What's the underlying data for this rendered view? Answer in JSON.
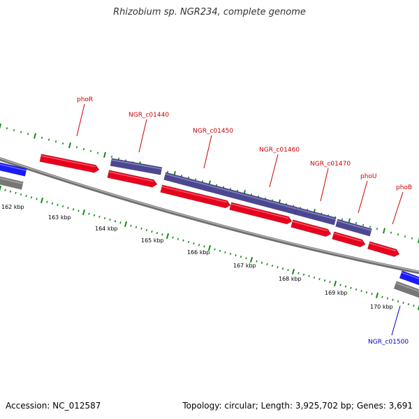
{
  "title": "Rhizobium sp. NGR234, complete genome",
  "footer": {
    "accession": "Accession: NC_012587",
    "stats": "Topology: circular; Length: 3,925,702 bp; Genes: 3,691"
  },
  "colors": {
    "cds_forward": "#e8001c",
    "gene_forward": "#4b4793",
    "cds_reverse": "#1a1aff",
    "gene_reverse": "#777777",
    "backbone": "#8a8a8a",
    "ticks": "#128c12",
    "label_red": "#cc0000",
    "label_blue": "#0000cc"
  },
  "ruler_labels": [
    "162 kbp",
    "163 kbp",
    "164 kbp",
    "165 kbp",
    "166 kbp",
    "167 kbp",
    "168 kbp",
    "169 kbp",
    "170 kbp"
  ],
  "forward_gene_labels": [
    "phoR",
    "NGR_c01440",
    "NGR_c01450",
    "NGR_c01460",
    "NGR_c01470",
    "phoU",
    "phoB"
  ],
  "reverse_gene_labels": [
    "NGR_c01500"
  ]
}
